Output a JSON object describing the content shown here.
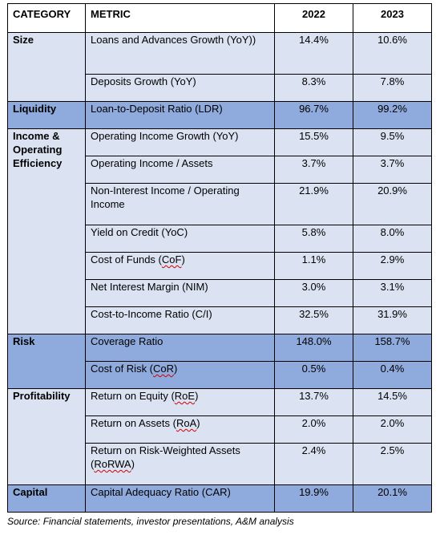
{
  "headers": {
    "category": "CATEGORY",
    "metric": "METRIC",
    "year1": "2022",
    "year2": "2023"
  },
  "groups": [
    {
      "category": "Size",
      "shade": "light",
      "rows": [
        {
          "metric": "Loans and Advances Growth (YoY))",
          "v2022": "14.4%",
          "v2023": "10.6%",
          "h": 52
        },
        {
          "metric": "Deposits Growth (YoY)",
          "v2022": "8.3%",
          "v2023": "7.8%",
          "h": 34
        }
      ]
    },
    {
      "category": "Liquidity",
      "shade": "dark",
      "rows": [
        {
          "metric": "Loan-to-Deposit Ratio (LDR)",
          "v2022": "96.7%",
          "v2023": "99.2%",
          "h": 34
        }
      ]
    },
    {
      "category": "Income & Operating Efficiency",
      "shade": "light",
      "rows": [
        {
          "metric": "Operating Income Growth (YoY)",
          "v2022": "15.5%",
          "v2023": "9.5%",
          "h": 34
        },
        {
          "metric": "Operating Income / Assets",
          "v2022": "3.7%",
          "v2023": "3.7%",
          "h": 34
        },
        {
          "metric": "Non-Interest Income / Operating Income",
          "v2022": "21.9%",
          "v2023": "20.9%",
          "h": 52
        },
        {
          "metric": "Yield on Credit (YoC)",
          "v2022": "5.8%",
          "v2023": "8.0%",
          "h": 34
        },
        {
          "metric": "Cost of Funds (CoF)",
          "v2022": "1.1%",
          "v2023": "2.9%",
          "h": 34,
          "abbr": "CoF"
        },
        {
          "metric": "Net Interest Margin (NIM)",
          "v2022": "3.0%",
          "v2023": "3.1%",
          "h": 34
        },
        {
          "metric": "Cost-to-Income Ratio (C/I)",
          "v2022": "32.5%",
          "v2023": "31.9%",
          "h": 34
        }
      ]
    },
    {
      "category": "Risk",
      "shade": "dark",
      "rows": [
        {
          "metric": "Coverage Ratio",
          "v2022": "148.0%",
          "v2023": "158.7%",
          "h": 34
        },
        {
          "metric": "Cost of Risk (CoR)",
          "v2022": "0.5%",
          "v2023": "0.4%",
          "h": 34,
          "abbr": "CoR"
        }
      ]
    },
    {
      "category": "Profitability",
      "shade": "light",
      "rows": [
        {
          "metric": "Return on Equity (RoE)",
          "v2022": "13.7%",
          "v2023": "14.5%",
          "h": 34,
          "abbr": "RoE"
        },
        {
          "metric": "Return on Assets (RoA)",
          "v2022": "2.0%",
          "v2023": "2.0%",
          "h": 34,
          "abbr": "RoA"
        },
        {
          "metric": "Return on Risk-Weighted Assets (RoRWA)",
          "v2022": "2.4%",
          "v2023": "2.5%",
          "h": 52,
          "abbr": "RoRWA"
        }
      ]
    },
    {
      "category": "Capital",
      "shade": "dark",
      "rows": [
        {
          "metric": "Capital Adequacy Ratio (CAR)",
          "v2022": "19.9%",
          "v2023": "20.1%",
          "h": 34
        }
      ]
    }
  ],
  "source": "Source: Financial statements, investor presentations, A&M analysis"
}
